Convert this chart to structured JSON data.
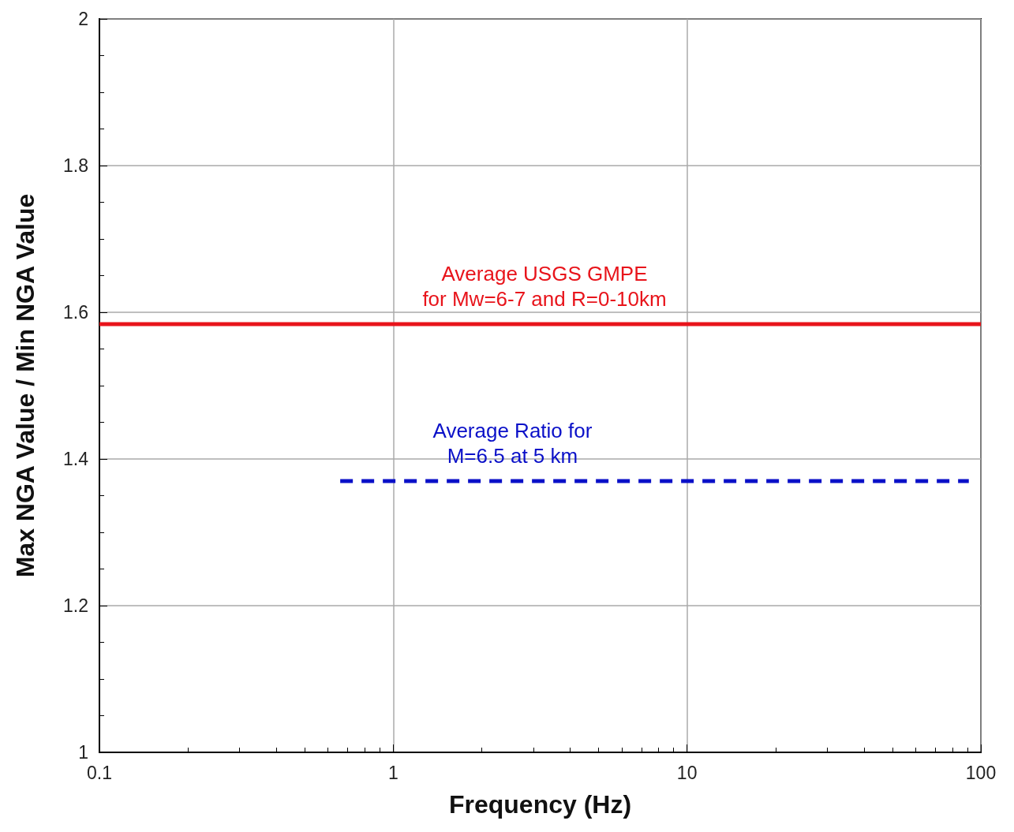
{
  "chart_data": {
    "type": "line",
    "xlabel": "Frequency (Hz)",
    "ylabel": "Max NGA Value / Min NGA Value",
    "log": "x",
    "xlim": [
      0.1,
      100
    ],
    "xticks": [
      0.1,
      1,
      10,
      100
    ],
    "ylim": [
      1,
      2
    ],
    "yticks": [
      1,
      1.2,
      1.4,
      1.6,
      1.8,
      2
    ],
    "grid": true,
    "legend": false,
    "marker": "none",
    "series": [
      {
        "name": "Average USGS GMPE\nfor Mw=6-7 and R=0-10km",
        "color": "#e8141b",
        "x": [
          0.1,
          100
        ],
        "values": [
          1.584,
          1.584
        ],
        "line_style": "solid"
      },
      {
        "name": "Average Ratio for\nM=6.5 at 5 km",
        "color": "#0a10c8",
        "x": [
          0.66,
          91
        ],
        "values": [
          1.37,
          1.37
        ],
        "line_style": "dashed"
      }
    ]
  }
}
